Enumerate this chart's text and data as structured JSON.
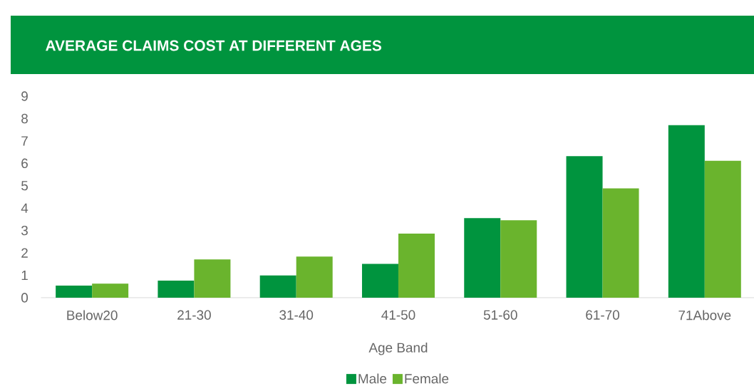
{
  "chart_data": {
    "type": "bar",
    "title": "AVERAGE CLAIMS COST AT DIFFERENT AGES",
    "xlabel": "Age Band",
    "categories": [
      "Below20",
      "21-30",
      "31-40",
      "41-50",
      "51-60",
      "61-70",
      "71Above"
    ],
    "series": [
      {
        "name": "Male",
        "color": "#00943e",
        "values": [
          0.54,
          0.76,
          0.99,
          1.51,
          3.55,
          6.32,
          7.7
        ]
      },
      {
        "name": "Female",
        "color": "#6ab42d",
        "values": [
          0.63,
          1.71,
          1.84,
          2.86,
          3.46,
          4.88,
          6.11
        ]
      }
    ],
    "ylim": [
      0,
      9
    ],
    "yticks": [
      0,
      1,
      2,
      3,
      4,
      5,
      6,
      7,
      8,
      9
    ],
    "legend": "bottom"
  }
}
